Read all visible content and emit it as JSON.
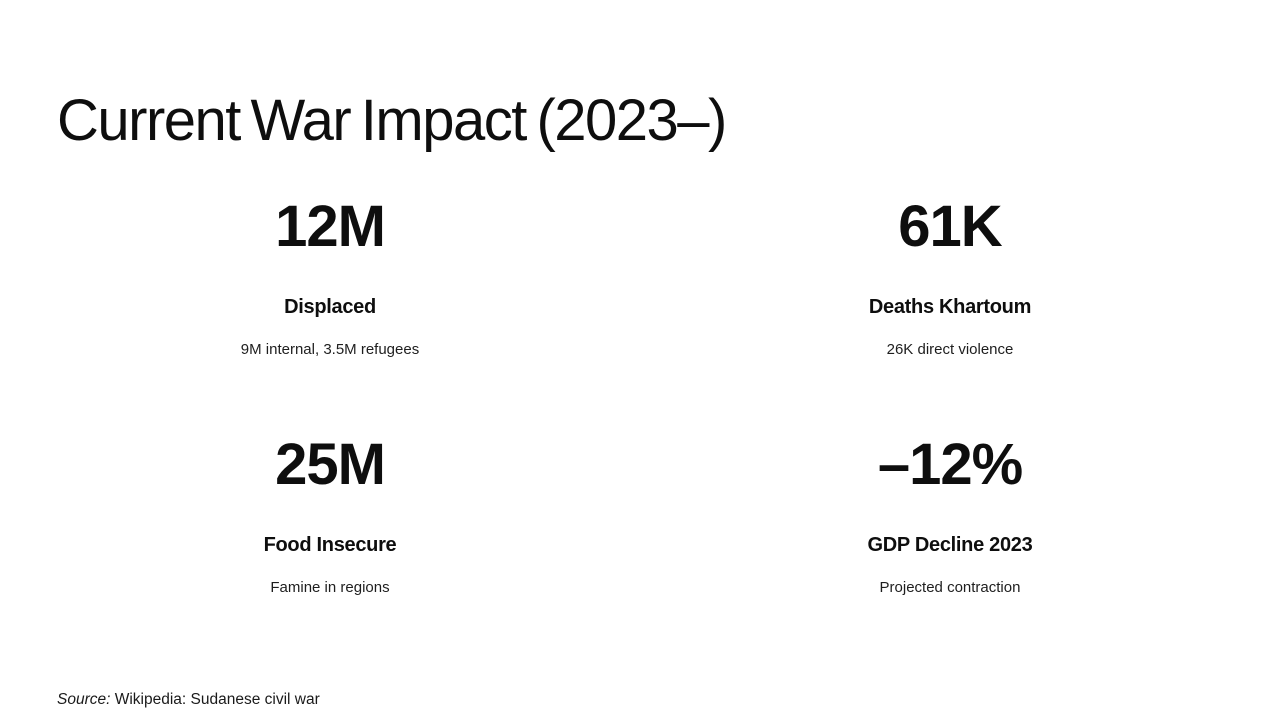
{
  "title": "Current War Impact (2023–)",
  "stats": [
    {
      "value": "12M",
      "label": "Displaced",
      "description": "9M internal, 3.5M refugees"
    },
    {
      "value": "61K",
      "label": "Deaths Khartoum",
      "description": "26K direct violence"
    },
    {
      "value": "25M",
      "label": "Food Insecure",
      "description": "Famine in regions"
    },
    {
      "value": "–12%",
      "label": "GDP Decline 2023",
      "description": "Projected contraction"
    }
  ],
  "source": {
    "prefix": "Source:",
    "text": " Wikipedia: Sudanese civil war"
  },
  "colors": {
    "background": "#ffffff",
    "text": "#0e0e0e",
    "muted": "#1e1e1e"
  }
}
